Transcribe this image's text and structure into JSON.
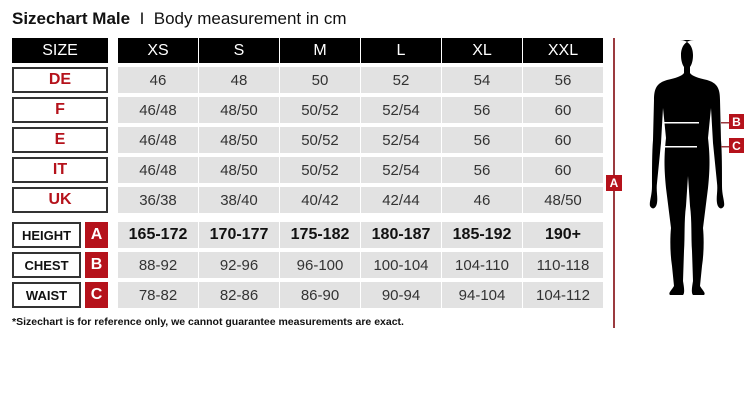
{
  "title": {
    "main": "Sizechart Male",
    "separator": "I",
    "sub": "Body measurement in cm"
  },
  "header": {
    "label": "SIZE",
    "sizes": [
      "XS",
      "S",
      "M",
      "L",
      "XL",
      "XXL"
    ]
  },
  "country_rows": [
    {
      "label": "DE",
      "values": [
        "46",
        "48",
        "50",
        "52",
        "54",
        "56"
      ]
    },
    {
      "label": "F",
      "values": [
        "46/48",
        "48/50",
        "50/52",
        "52/54",
        "56",
        "60"
      ]
    },
    {
      "label": "E",
      "values": [
        "46/48",
        "48/50",
        "50/52",
        "52/54",
        "56",
        "60"
      ]
    },
    {
      "label": "IT",
      "values": [
        "46/48",
        "48/50",
        "50/52",
        "52/54",
        "56",
        "60"
      ]
    },
    {
      "label": "UK",
      "values": [
        "36/38",
        "38/40",
        "40/42",
        "42/44",
        "46",
        "48/50"
      ]
    }
  ],
  "measure_rows": [
    {
      "label": "HEIGHT",
      "badge": "A",
      "values": [
        "165-172",
        "170-177",
        "175-182",
        "180-187",
        "185-192",
        "190+"
      ]
    },
    {
      "label": "CHEST",
      "badge": "B",
      "values": [
        "88-92",
        "92-96",
        "96-100",
        "100-104",
        "104-110",
        "110-118"
      ]
    },
    {
      "label": "WAIST",
      "badge": "C",
      "values": [
        "78-82",
        "82-86",
        "86-90",
        "90-94",
        "94-104",
        "104-112"
      ]
    }
  ],
  "footnote": "*Sizechart is for reference only, we cannot guarantee measurements are exact.",
  "figure": {
    "badge_a": "A",
    "badge_b": "B",
    "badge_c": "C"
  },
  "colors": {
    "accent": "#b5121b",
    "header_bg": "#000000",
    "cell_bg": "#e2e2e2"
  }
}
